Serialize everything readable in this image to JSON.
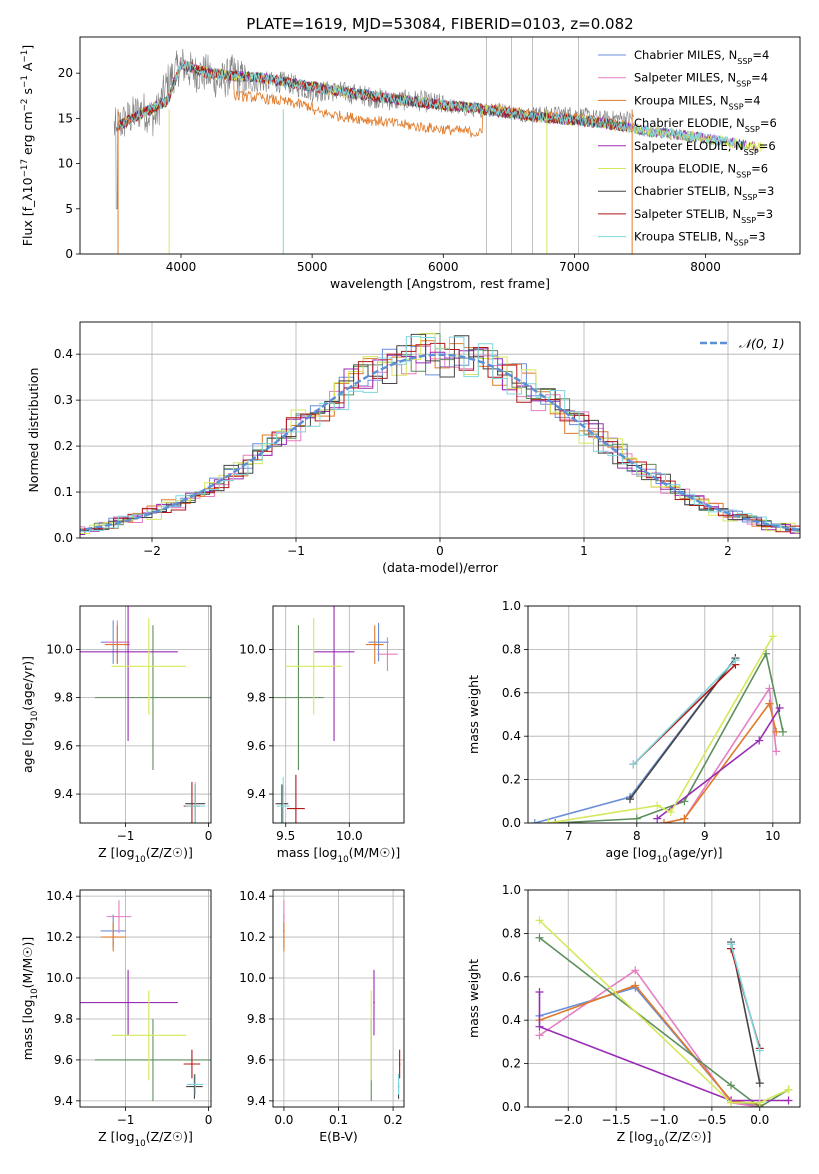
{
  "figure": {
    "title": "PLATE=1619, MJD=53084, FIBERID=0103, z=0.082"
  },
  "colors": {
    "chabrier_miles": "#6a8fd8",
    "salpeter_miles": "#e57ec2",
    "kroupa_miles": "#e07a2a",
    "chabrier_elodie": "#5d8f5d",
    "salpeter_elodie": "#9a2bb6",
    "kroupa_elodie": "#d6e85a",
    "chabrier_stelib": "#444444",
    "salpeter_stelib": "#b21818",
    "kroupa_stelib": "#7fd6de",
    "gaussian": "#5b8fd6",
    "grid": "#b0b0b0"
  },
  "chart_data": [
    {
      "id": "spectrum",
      "type": "line",
      "xlabel": "wavelength [Angstrom, rest frame]",
      "ylabel": "Flux [f_λ10^-17 erg cm^-2 s^-1 A^-1]",
      "xlim": [
        3230,
        8720
      ],
      "ylim": [
        0,
        24
      ],
      "xticks": [
        4000,
        5000,
        6000,
        7000,
        8000
      ],
      "yticks": [
        0,
        5,
        10,
        15,
        20
      ],
      "grid": false,
      "legend_position": "top-right",
      "data_series": {
        "name": "",
        "color": "#808080",
        "x": [
          3500,
          3600,
          3700,
          3800,
          3900,
          4000,
          4100,
          4200,
          4300,
          4400,
          4500,
          4600,
          4700,
          4800,
          4900,
          5000,
          5200,
          5400,
          5600,
          5800,
          6000,
          6200,
          6400,
          6600,
          6800,
          7000,
          7200,
          7400
        ],
        "y": [
          14,
          15,
          16,
          15,
          19,
          21,
          20,
          20,
          19,
          20,
          19,
          19,
          19,
          19,
          18.5,
          18,
          18,
          17.5,
          17,
          17,
          16.5,
          16,
          16,
          15.5,
          15.5,
          15.5,
          15,
          15
        ]
      },
      "model_series": [
        {
          "name": "Chabrier MILES, N_SSP=4",
          "color_key": "chabrier_miles"
        },
        {
          "name": "Salpeter MILES, N_SSP=4",
          "color_key": "salpeter_miles"
        },
        {
          "name": "Kroupa MILES, N_SSP=4",
          "color_key": "kroupa_miles"
        },
        {
          "name": "Chabrier ELODIE, N_SSP=6",
          "color_key": "chabrier_elodie"
        },
        {
          "name": "Salpeter ELODIE, N_SSP=6",
          "color_key": "salpeter_elodie"
        },
        {
          "name": "Kroupa ELODIE, N_SSP=6",
          "color_key": "kroupa_elodie"
        },
        {
          "name": "Chabrier STELIB, N_SSP=3",
          "color_key": "chabrier_stelib"
        },
        {
          "name": "Salpeter STELIB, N_SSP=3",
          "color_key": "salpeter_stelib"
        },
        {
          "name": "Kroupa STELIB, N_SSP=3",
          "color_key": "kroupa_stelib"
        }
      ],
      "model_continuum": {
        "x": [
          3500,
          3700,
          3900,
          4000,
          4200,
          4400,
          4600,
          4800,
          5000,
          5200,
          5400,
          5600,
          5800,
          6000,
          6200,
          6400,
          6600,
          6800,
          7000,
          7200,
          7400,
          7600,
          7800,
          8000,
          8200,
          8450
        ],
        "y": [
          14,
          15.5,
          17,
          21,
          20,
          19.7,
          19.5,
          19,
          18.5,
          18,
          17.6,
          17.2,
          16.8,
          16.5,
          16.2,
          15.8,
          15.4,
          15,
          14.8,
          14.5,
          14,
          13.5,
          13.2,
          12.8,
          12.3,
          11.8
        ]
      }
    },
    {
      "id": "residual-histogram",
      "type": "line",
      "xlabel": "(data-model)/error",
      "ylabel": "Normed distribution",
      "xlim": [
        -2.5,
        2.5
      ],
      "ylim": [
        0,
        0.47
      ],
      "xticks": [
        -2,
        -1,
        0,
        1,
        2
      ],
      "yticks": [
        0.0,
        0.1,
        0.2,
        0.3,
        0.4
      ],
      "grid": true,
      "legend_position": "top-right",
      "gaussian_label": "𝒩(0, 1)",
      "bin_width": 0.1,
      "series_note": "nine step histograms, one per model, following N(0,1) with scatter"
    },
    {
      "id": "age-vs-z",
      "type": "scatter",
      "xlabel": "Z [log10(Z/Z☉)]",
      "ylabel": "age [log10(age/yr)]",
      "xlim": [
        -1.55,
        0.03
      ],
      "ylim": [
        9.28,
        10.18
      ],
      "xticks": [
        -1,
        0
      ],
      "yticks": [
        9.4,
        9.6,
        9.8,
        10.0
      ],
      "grid": true,
      "points": [
        {
          "color_key": "chabrier_miles",
          "x": -1.15,
          "xerr": 0.15,
          "y": 10.03,
          "yerr": 0.09
        },
        {
          "color_key": "salpeter_miles",
          "x": -1.1,
          "xerr": 0.15,
          "y": 10.03,
          "yerr": 0.09
        },
        {
          "color_key": "kroupa_miles",
          "x": -1.1,
          "xerr": 0.15,
          "y": 10.02,
          "yerr": 0.08
        },
        {
          "color_key": "chabrier_elodie",
          "x": -0.67,
          "xerr": 0.7,
          "y": 9.8,
          "yerr": 0.3
        },
        {
          "color_key": "salpeter_elodie",
          "x": -0.97,
          "xerr": 0.6,
          "y": 9.99,
          "yerr": 0.37
        },
        {
          "color_key": "kroupa_elodie",
          "x": -0.72,
          "xerr": 0.45,
          "y": 9.93,
          "yerr": 0.2
        },
        {
          "color_key": "chabrier_stelib",
          "x": -0.16,
          "xerr": 0.12,
          "y": 9.36,
          "yerr": 0.08
        },
        {
          "color_key": "salpeter_stelib",
          "x": -0.2,
          "xerr": 0.1,
          "y": 9.35,
          "yerr": 0.1
        },
        {
          "color_key": "kroupa_stelib",
          "x": -0.16,
          "xerr": 0.12,
          "y": 9.35,
          "yerr": 0.1
        }
      ]
    },
    {
      "id": "age-vs-mass",
      "type": "scatter",
      "xlabel": "mass [log10(M/M☉)]",
      "ylabel": "",
      "xlim": [
        9.4,
        10.43
      ],
      "ylim": [
        9.28,
        10.18
      ],
      "xticks": [
        9.5,
        10.0
      ],
      "yticks": [
        9.4,
        9.6,
        9.8,
        10.0
      ],
      "grid": true,
      "points": [
        {
          "color_key": "chabrier_miles",
          "x": 10.23,
          "xerr": 0.08,
          "y": 10.03,
          "yerr": 0.08
        },
        {
          "color_key": "salpeter_miles",
          "x": 10.3,
          "xerr": 0.08,
          "y": 9.98,
          "yerr": 0.07
        },
        {
          "color_key": "kroupa_miles",
          "x": 10.2,
          "xerr": 0.07,
          "y": 10.02,
          "yerr": 0.08
        },
        {
          "color_key": "chabrier_elodie",
          "x": 9.6,
          "xerr": 0.2,
          "y": 9.8,
          "yerr": 0.3
        },
        {
          "color_key": "salpeter_elodie",
          "x": 9.88,
          "xerr": 0.16,
          "y": 9.99,
          "yerr": 0.37
        },
        {
          "color_key": "kroupa_elodie",
          "x": 9.72,
          "xerr": 0.22,
          "y": 9.93,
          "yerr": 0.2
        },
        {
          "color_key": "chabrier_stelib",
          "x": 9.47,
          "xerr": 0.05,
          "y": 9.36,
          "yerr": 0.08
        },
        {
          "color_key": "salpeter_stelib",
          "x": 9.58,
          "xerr": 0.07,
          "y": 9.34,
          "yerr": 0.14
        },
        {
          "color_key": "kroupa_stelib",
          "x": 9.48,
          "xerr": 0.05,
          "y": 9.35,
          "yerr": 0.12
        }
      ]
    },
    {
      "id": "mass-weight-vs-age",
      "type": "line",
      "xlabel": "age [log10(age/yr)]",
      "ylabel": "mass weight",
      "xlim": [
        6.4,
        10.4
      ],
      "ylim": [
        0,
        1.0
      ],
      "xticks": [
        7,
        8,
        9,
        10
      ],
      "yticks": [
        0.0,
        0.2,
        0.4,
        0.6,
        0.8,
        1.0
      ],
      "grid": true,
      "series": [
        {
          "color_key": "chabrier_miles",
          "x": [
            6.5,
            7.9,
            9.45
          ],
          "y": [
            0.0,
            0.12,
            0.76
          ]
        },
        {
          "color_key": "salpeter_miles",
          "x": [
            8.4,
            8.7,
            9.95,
            10.05
          ],
          "y": [
            0.0,
            0.02,
            0.62,
            0.33
          ]
        },
        {
          "color_key": "kroupa_miles",
          "x": [
            8.4,
            8.7,
            9.95,
            10.05
          ],
          "y": [
            0.0,
            0.02,
            0.55,
            0.42
          ]
        },
        {
          "color_key": "chabrier_elodie",
          "x": [
            6.8,
            8.0,
            8.7,
            9.9,
            10.15
          ],
          "y": [
            0.0,
            0.02,
            0.1,
            0.78,
            0.42
          ]
        },
        {
          "color_key": "salpeter_elodie",
          "x": [
            8.3,
            9.8,
            10.1
          ],
          "y": [
            0.02,
            0.38,
            0.53
          ]
        },
        {
          "color_key": "kroupa_elodie",
          "x": [
            6.7,
            8.3,
            8.5,
            10.0
          ],
          "y": [
            0.0,
            0.08,
            0.05,
            0.86
          ]
        },
        {
          "color_key": "chabrier_stelib",
          "x": [
            7.9,
            9.45
          ],
          "y": [
            0.11,
            0.76
          ]
        },
        {
          "color_key": "salpeter_stelib",
          "x": [
            7.95,
            9.45
          ],
          "y": [
            0.27,
            0.73
          ]
        },
        {
          "color_key": "kroupa_stelib",
          "x": [
            7.95,
            9.45
          ],
          "y": [
            0.27,
            0.75
          ]
        }
      ]
    },
    {
      "id": "mass-vs-z",
      "type": "scatter",
      "xlabel": "Z [log10(Z/Z☉)]",
      "ylabel": "mass [log10(M/M☉)]",
      "xlim": [
        -1.55,
        0.03
      ],
      "ylim": [
        9.37,
        10.43
      ],
      "xticks": [
        -1,
        0
      ],
      "yticks": [
        9.4,
        9.6,
        9.8,
        10.0,
        10.2,
        10.4
      ],
      "grid": true,
      "points": [
        {
          "color_key": "chabrier_miles",
          "x": -1.15,
          "xerr": 0.15,
          "y": 10.23,
          "yerr": 0.08
        },
        {
          "color_key": "salpeter_miles",
          "x": -1.08,
          "xerr": 0.15,
          "y": 10.3,
          "yerr": 0.08
        },
        {
          "color_key": "kroupa_miles",
          "x": -1.15,
          "xerr": 0.15,
          "y": 10.2,
          "yerr": 0.07
        },
        {
          "color_key": "chabrier_elodie",
          "x": -0.67,
          "xerr": 0.7,
          "y": 9.6,
          "yerr": 0.2
        },
        {
          "color_key": "salpeter_elodie",
          "x": -0.97,
          "xerr": 0.6,
          "y": 9.88,
          "yerr": 0.16
        },
        {
          "color_key": "kroupa_elodie",
          "x": -0.72,
          "xerr": 0.45,
          "y": 9.72,
          "yerr": 0.22
        },
        {
          "color_key": "chabrier_stelib",
          "x": -0.17,
          "xerr": 0.1,
          "y": 9.47,
          "yerr": 0.06
        },
        {
          "color_key": "salpeter_stelib",
          "x": -0.2,
          "xerr": 0.1,
          "y": 9.58,
          "yerr": 0.07
        },
        {
          "color_key": "kroupa_stelib",
          "x": -0.16,
          "xerr": 0.1,
          "y": 9.48,
          "yerr": 0.05
        }
      ]
    },
    {
      "id": "mass-vs-ebv",
      "type": "scatter",
      "xlabel": "E(B-V)",
      "ylabel": "",
      "xlim": [
        -0.02,
        0.22
      ],
      "ylim": [
        9.37,
        10.43
      ],
      "xticks": [
        0.0,
        0.1,
        0.2
      ],
      "yticks": [
        9.4,
        9.6,
        9.8,
        10.0,
        10.2,
        10.4
      ],
      "grid": true,
      "points": [
        {
          "color_key": "chabrier_miles",
          "x": 0.0,
          "y": 10.23,
          "yerr": 0.08
        },
        {
          "color_key": "salpeter_miles",
          "x": 0.0,
          "y": 10.3,
          "yerr": 0.08
        },
        {
          "color_key": "kroupa_miles",
          "x": 0.0,
          "y": 10.2,
          "yerr": 0.07
        },
        {
          "color_key": "chabrier_elodie",
          "x": 0.16,
          "y": 9.6,
          "yerr": 0.2
        },
        {
          "color_key": "salpeter_elodie",
          "x": 0.165,
          "y": 9.88,
          "yerr": 0.16
        },
        {
          "color_key": "kroupa_elodie",
          "x": 0.16,
          "y": 9.72,
          "yerr": 0.22
        },
        {
          "color_key": "chabrier_stelib",
          "x": 0.21,
          "y": 9.47,
          "yerr": 0.06
        },
        {
          "color_key": "salpeter_stelib",
          "x": 0.212,
          "y": 9.58,
          "yerr": 0.07
        },
        {
          "color_key": "kroupa_stelib",
          "x": 0.21,
          "y": 9.48,
          "yerr": 0.05
        }
      ]
    },
    {
      "id": "mass-weight-vs-z",
      "type": "line",
      "xlabel": "Z [log10(Z/Z☉)]",
      "ylabel": "mass weight",
      "xlim": [
        -2.42,
        0.42
      ],
      "ylim": [
        0,
        1.0
      ],
      "xticks": [
        -2.0,
        -1.5,
        -1.0,
        -0.5,
        0.0
      ],
      "yticks": [
        0.0,
        0.2,
        0.4,
        0.6,
        0.8,
        1.0
      ],
      "grid": true,
      "series": [
        {
          "color_key": "chabrier_miles",
          "x": [
            -2.3,
            -1.3,
            -0.3,
            0.0
          ],
          "y": [
            0.42,
            0.55,
            0.03,
            0.0
          ]
        },
        {
          "color_key": "salpeter_miles",
          "x": [
            -2.3,
            -1.3,
            -0.3,
            0.0
          ],
          "y": [
            0.33,
            0.63,
            0.02,
            0.0
          ]
        },
        {
          "color_key": "kroupa_miles",
          "x": [
            -2.3,
            -1.3,
            -0.3,
            0.0
          ],
          "y": [
            0.4,
            0.56,
            0.03,
            0.01
          ]
        },
        {
          "color_key": "chabrier_elodie",
          "x": [
            -2.3,
            -0.3,
            0.0,
            0.3
          ],
          "y": [
            0.78,
            0.1,
            0.0,
            0.08
          ]
        },
        {
          "color_key": "salpeter_elodie",
          "x": [
            -2.3,
            -2.3,
            -0.3,
            0.3
          ],
          "y": [
            0.53,
            0.37,
            0.03,
            0.03
          ]
        },
        {
          "color_key": "kroupa_elodie",
          "x": [
            -2.3,
            -0.3,
            0.0,
            0.3
          ],
          "y": [
            0.86,
            0.02,
            0.02,
            0.08
          ]
        },
        {
          "color_key": "chabrier_stelib",
          "x": [
            -0.3,
            0.0
          ],
          "y": [
            0.76,
            0.11
          ]
        },
        {
          "color_key": "salpeter_stelib",
          "x": [
            -0.3,
            0.0
          ],
          "y": [
            0.73,
            0.27
          ]
        },
        {
          "color_key": "kroupa_stelib",
          "x": [
            -0.3,
            0.0
          ],
          "y": [
            0.75,
            0.26
          ]
        }
      ]
    }
  ]
}
